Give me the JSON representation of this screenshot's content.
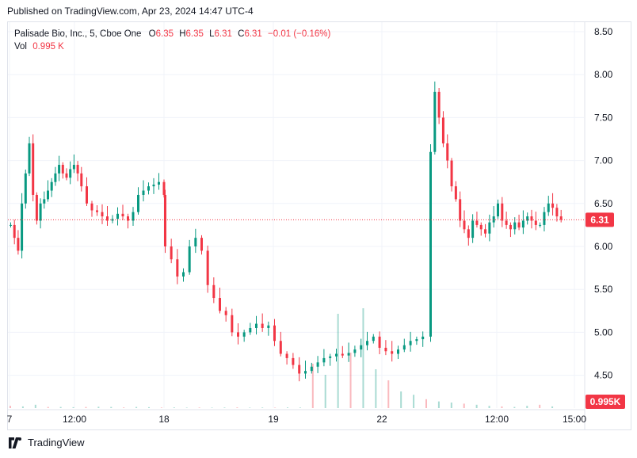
{
  "header": {
    "published": "Published on TradingView.com, Apr 23, 2024 14:47 UTC-4"
  },
  "legend": {
    "symbol": "Palisade Bio, Inc., 5, Cboe One",
    "open_label": "O",
    "open": "6.35",
    "high_label": "H",
    "high": "6.35",
    "low_label": "L",
    "low": "6.31",
    "close_label": "C",
    "close": "6.31",
    "change": "−0.01 (−0.16%)",
    "vol_label": "Vol",
    "vol": "0.995 K"
  },
  "footer": {
    "brand": "TradingView"
  },
  "colors": {
    "up": "#089981",
    "down": "#f23645",
    "grid": "#f0f3fa",
    "border": "#e0e3eb",
    "text": "#131722"
  },
  "chart_data": {
    "type": "candlestick",
    "price_axis": {
      "min": 4.3,
      "max": 8.6,
      "ticks": [
        "8.50",
        "8.00",
        "7.50",
        "7.00",
        "6.50",
        "6.00",
        "5.50",
        "5.00",
        "4.50"
      ]
    },
    "time_ticks": [
      "7",
      "12:00",
      "18",
      "19",
      "22",
      "12:00",
      "15:00"
    ],
    "last_price": "6.31",
    "last_volume": "0.995 K",
    "price_path": [
      6.25,
      6.1,
      5.95,
      6.5,
      6.85,
      7.2,
      6.6,
      6.3,
      6.5,
      6.55,
      6.65,
      6.75,
      6.85,
      6.95,
      6.85,
      6.8,
      6.9,
      6.95,
      6.85,
      6.7,
      6.5,
      6.42,
      6.4,
      6.35,
      6.3,
      6.32,
      6.38,
      6.35,
      6.3,
      6.4,
      6.6,
      6.65,
      6.7,
      6.72,
      6.75,
      6.6,
      6.0,
      5.85,
      5.65,
      5.7,
      6.0,
      6.1,
      5.95,
      5.55,
      5.4,
      5.25,
      5.2,
      5.0,
      4.95,
      5.0,
      5.05,
      5.1,
      5.05,
      5.08,
      4.9,
      4.75,
      4.7,
      4.62,
      4.52,
      4.55,
      4.6,
      4.65,
      4.7,
      4.72,
      4.75,
      4.73,
      4.76,
      4.8,
      4.85,
      4.9,
      4.95,
      4.82,
      4.78,
      4.75,
      4.8,
      4.85,
      4.9,
      4.92,
      4.95,
      7.1,
      7.8,
      7.5,
      7.2,
      7.0,
      6.7,
      6.55,
      6.3,
      6.2,
      6.1,
      6.3,
      6.25,
      6.2,
      6.15,
      6.28,
      6.35,
      6.5,
      6.3,
      6.25,
      6.2,
      6.28,
      6.22,
      6.3,
      6.35,
      6.3,
      6.25,
      6.25,
      6.4,
      6.5,
      6.45,
      6.35,
      6.31
    ],
    "volume_path": [
      0.02,
      0.015,
      0.03,
      0.01,
      0.01,
      0.008,
      0.01,
      0.012,
      0.01,
      0.006,
      0.01,
      0.008,
      0.005,
      0.006,
      0.004,
      0.005,
      0.004,
      0.005,
      0.006,
      0.004,
      0.005,
      0.004,
      0.006,
      0.005,
      0.4,
      0.3,
      0.85,
      0.5,
      0.9,
      0.35,
      0.25,
      0.15,
      0.12,
      0.08,
      0.06,
      0.05,
      0.04,
      0.03,
      0.02,
      0.015,
      0.01,
      0.02,
      0.03,
      0.015
    ]
  }
}
